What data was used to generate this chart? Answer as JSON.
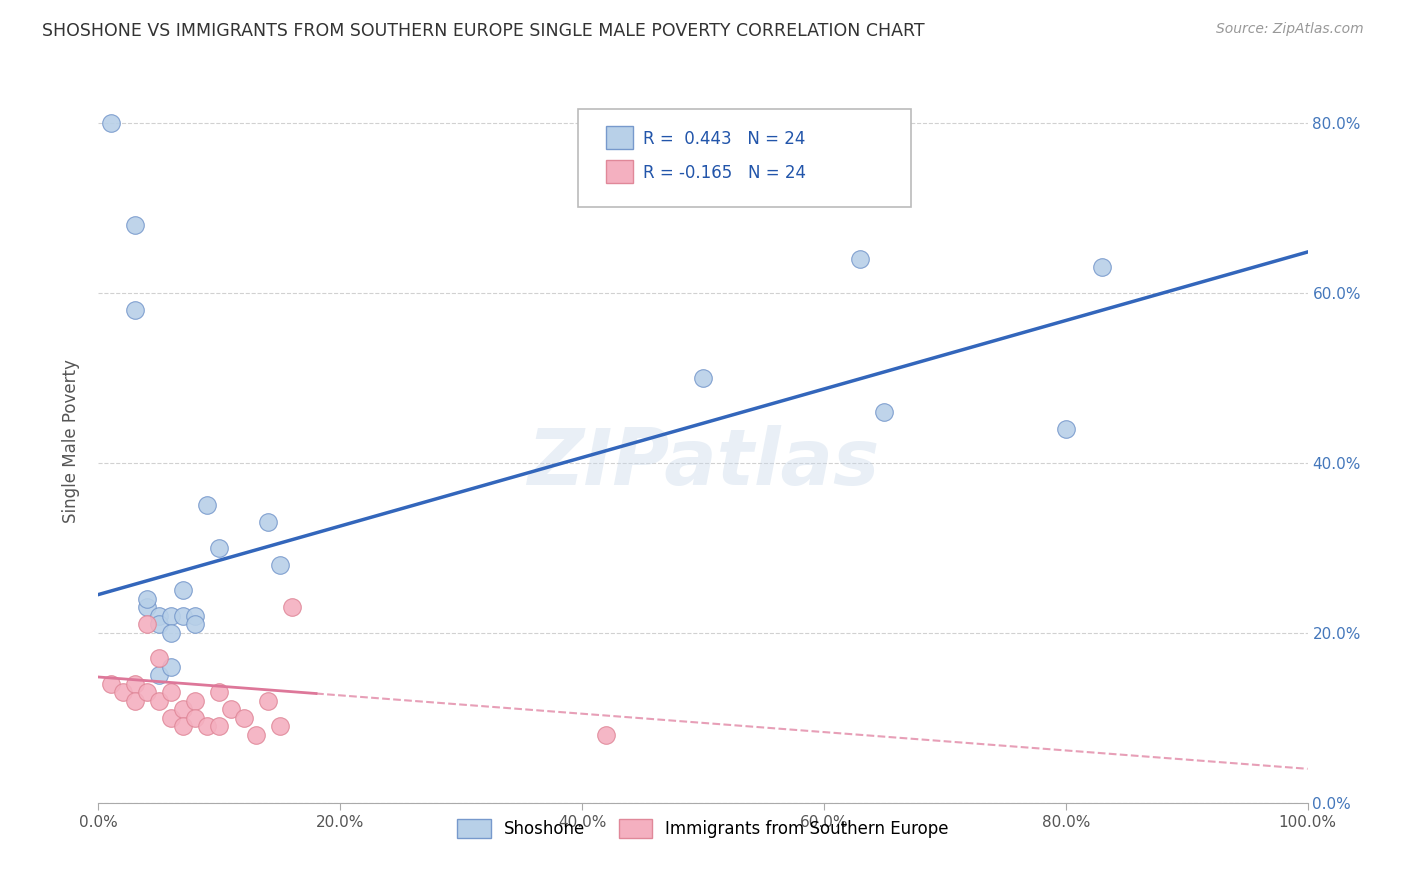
{
  "title": "SHOSHONE VS IMMIGRANTS FROM SOUTHERN EUROPE SINGLE MALE POVERTY CORRELATION CHART",
  "source": "Source: ZipAtlas.com",
  "ylabel": "Single Male Poverty",
  "xlim": [
    0.0,
    1.0
  ],
  "ylim": [
    0.0,
    0.85
  ],
  "x_ticks": [
    0.0,
    0.2,
    0.4,
    0.6,
    0.8,
    1.0
  ],
  "x_tick_labels": [
    "0.0%",
    "20.0%",
    "40.0%",
    "60.0%",
    "80.0%",
    "100.0%"
  ],
  "y_ticks": [
    0.0,
    0.2,
    0.4,
    0.6,
    0.8
  ],
  "y_tick_labels": [
    "0.0%",
    "20.0%",
    "40.0%",
    "60.0%",
    "80.0%"
  ],
  "legend1_label": "R =  0.443   N = 24",
  "legend2_label": "R = -0.165   N = 24",
  "series1_color": "#b8d0e8",
  "series2_color": "#f4b0c0",
  "series1_edge": "#7799cc",
  "series2_edge": "#e08899",
  "trendline1_color": "#3366bb",
  "trendline2_color": "#dd7799",
  "watermark": "ZIPatlas",
  "background_color": "#ffffff",
  "grid_color": "#cccccc",
  "shoshone_x": [
    0.01,
    0.03,
    0.03,
    0.04,
    0.04,
    0.05,
    0.05,
    0.05,
    0.06,
    0.06,
    0.06,
    0.07,
    0.07,
    0.08,
    0.08,
    0.09,
    0.1,
    0.14,
    0.15,
    0.5,
    0.63,
    0.65,
    0.8,
    0.83
  ],
  "shoshone_y": [
    0.8,
    0.68,
    0.58,
    0.23,
    0.24,
    0.22,
    0.21,
    0.15,
    0.22,
    0.2,
    0.16,
    0.25,
    0.22,
    0.22,
    0.21,
    0.35,
    0.3,
    0.33,
    0.28,
    0.5,
    0.64,
    0.46,
    0.44,
    0.63
  ],
  "immigrants_x": [
    0.01,
    0.02,
    0.03,
    0.03,
    0.04,
    0.04,
    0.05,
    0.05,
    0.06,
    0.06,
    0.07,
    0.07,
    0.08,
    0.08,
    0.09,
    0.1,
    0.1,
    0.11,
    0.12,
    0.13,
    0.14,
    0.15,
    0.16,
    0.42
  ],
  "immigrants_y": [
    0.14,
    0.13,
    0.14,
    0.12,
    0.21,
    0.13,
    0.17,
    0.12,
    0.13,
    0.1,
    0.11,
    0.09,
    0.12,
    0.1,
    0.09,
    0.13,
    0.09,
    0.11,
    0.1,
    0.08,
    0.12,
    0.09,
    0.23,
    0.08
  ],
  "trendline1_x0": 0.0,
  "trendline1_y0": 0.245,
  "trendline1_x1": 1.0,
  "trendline1_y1": 0.648,
  "trendline2_x0": 0.0,
  "trendline2_y0": 0.148,
  "trendline2_x1": 1.0,
  "trendline2_y1": 0.04,
  "trendline2_solid_x1": 0.18,
  "legend_bottom_label1": "Shoshone",
  "legend_bottom_label2": "Immigrants from Southern Europe"
}
